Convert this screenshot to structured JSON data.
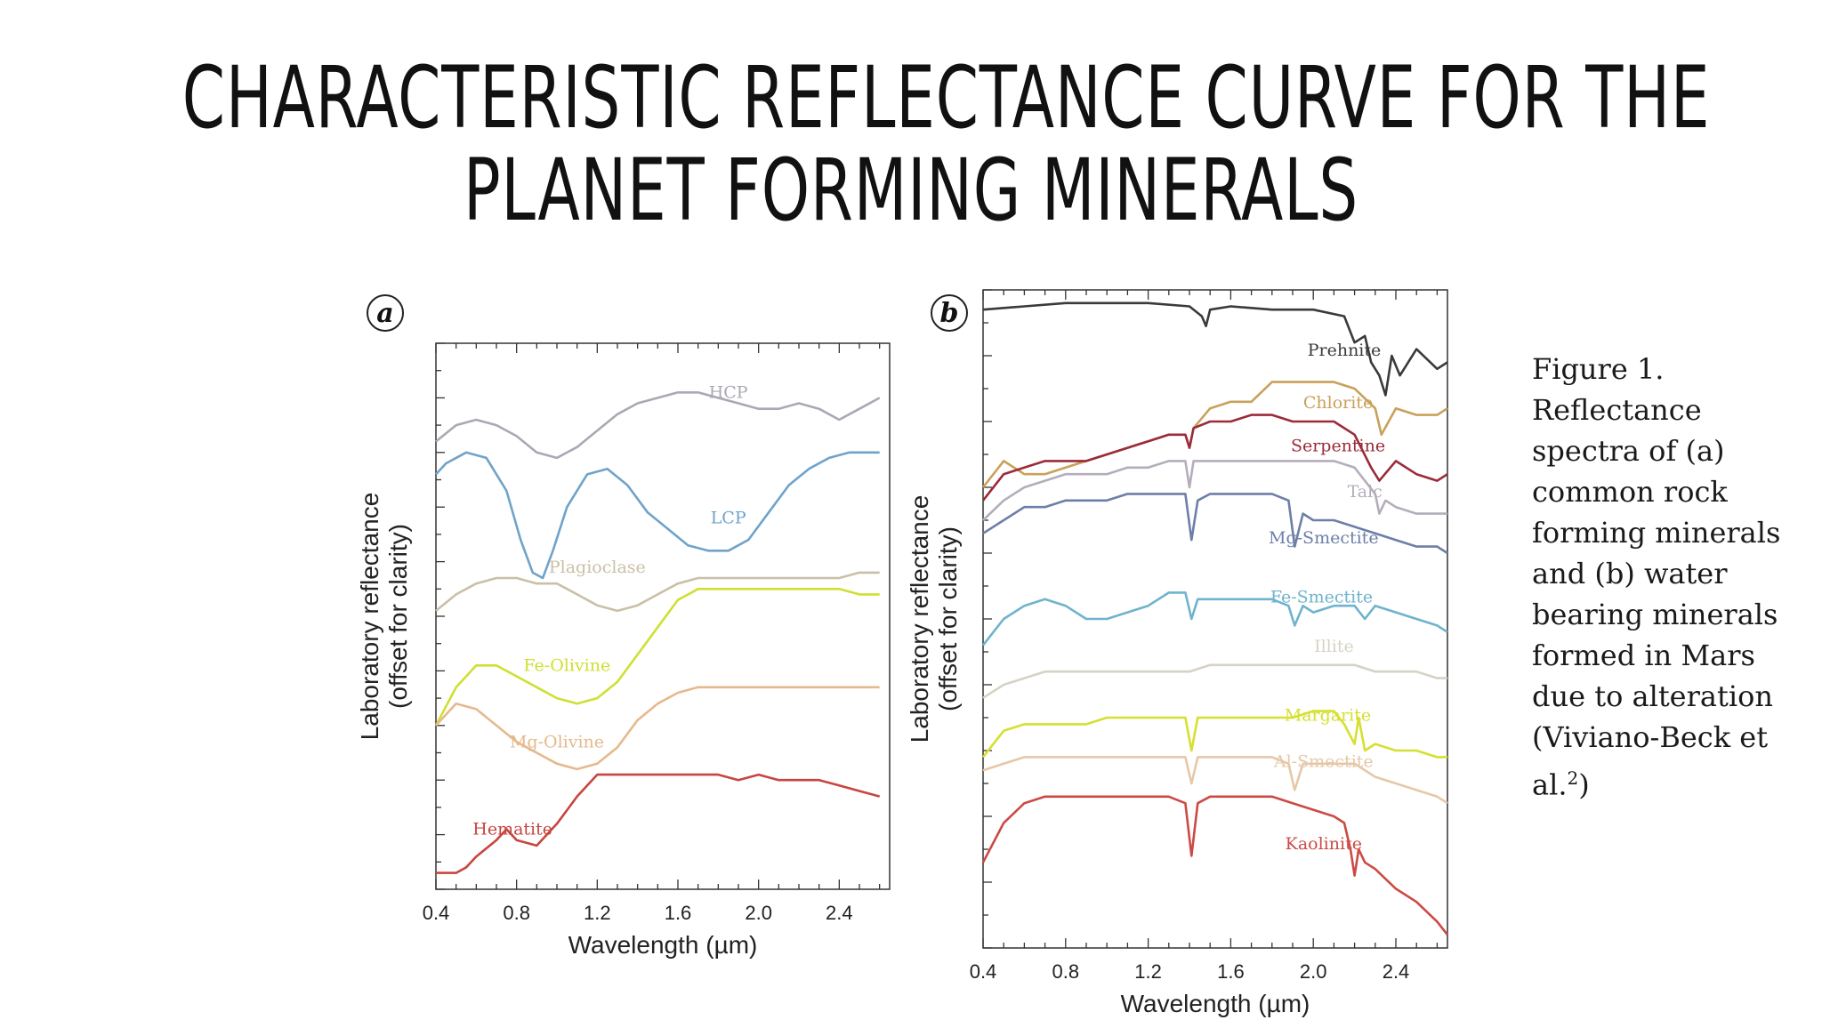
{
  "slide": {
    "title_line1": "CHARACTERISTIC REFLECTANCE CURVE FOR THE",
    "title_line2": "PLANET FORMING MINERALS",
    "caption_text": "Figure 1. Reflectance spectra of (a) common rock forming minerals and (b) water bearing minerals formed in Mars due to alteration (Viviano-Beck et al.",
    "caption_superscript": "2",
    "caption_end": ")"
  },
  "chart_data": [
    {
      "type": "line",
      "panel_label": "a",
      "xlabel": "Wavelength (µm)",
      "ylabel": "Laboratory reflectance",
      "ylabel_sub": "(offset for clarity)",
      "xlim": [
        0.4,
        2.65
      ],
      "xticks": [
        0.4,
        0.8,
        1.2,
        1.6,
        2.0,
        2.4
      ],
      "xtick_labels": [
        "0.4",
        "0.8",
        "1.2",
        "1.6",
        "2.0",
        "2.4"
      ],
      "y_tick_labels_shown": false,
      "ylim": [
        0,
        100
      ],
      "series": [
        {
          "name": "HCP",
          "color": "#a9a9b4",
          "label_at": [
            1.85,
            90
          ],
          "x": [
            0.4,
            0.5,
            0.6,
            0.7,
            0.8,
            0.9,
            1.0,
            1.1,
            1.2,
            1.3,
            1.4,
            1.5,
            1.6,
            1.7,
            1.8,
            1.9,
            2.0,
            2.1,
            2.2,
            2.3,
            2.4,
            2.5,
            2.6
          ],
          "y": [
            82,
            85,
            86,
            85,
            83,
            80,
            79,
            81,
            84,
            87,
            89,
            90,
            91,
            91,
            90,
            89,
            88,
            88,
            89,
            88,
            86,
            88,
            90
          ]
        },
        {
          "name": "LCP",
          "color": "#6fa3c9",
          "label_at": [
            1.85,
            67
          ],
          "x": [
            0.4,
            0.45,
            0.55,
            0.65,
            0.75,
            0.82,
            0.88,
            0.93,
            0.98,
            1.05,
            1.15,
            1.25,
            1.35,
            1.45,
            1.55,
            1.65,
            1.75,
            1.85,
            1.95,
            2.05,
            2.15,
            2.25,
            2.35,
            2.45,
            2.55,
            2.6
          ],
          "y": [
            76,
            78,
            80,
            79,
            73,
            64,
            58,
            57,
            62,
            70,
            76,
            77,
            74,
            69,
            66,
            63,
            62,
            62,
            64,
            69,
            74,
            77,
            79,
            80,
            80,
            80
          ]
        },
        {
          "name": "Plagioclase",
          "color": "#c9c0a6",
          "label_at": [
            1.2,
            58
          ],
          "x": [
            0.4,
            0.5,
            0.6,
            0.7,
            0.8,
            0.9,
            1.0,
            1.1,
            1.2,
            1.3,
            1.4,
            1.5,
            1.6,
            1.7,
            1.8,
            1.9,
            2.0,
            2.1,
            2.2,
            2.3,
            2.4,
            2.5,
            2.6
          ],
          "y": [
            51,
            54,
            56,
            57,
            57,
            56,
            56,
            54,
            52,
            51,
            52,
            54,
            56,
            57,
            57,
            57,
            57,
            57,
            57,
            57,
            57,
            58,
            58
          ]
        },
        {
          "name": "Fe-Olivine",
          "color": "#cfe032",
          "label_at": [
            1.05,
            40
          ],
          "x": [
            0.4,
            0.5,
            0.6,
            0.7,
            0.8,
            0.9,
            1.0,
            1.1,
            1.2,
            1.3,
            1.4,
            1.5,
            1.6,
            1.7,
            1.8,
            1.9,
            2.0,
            2.1,
            2.2,
            2.3,
            2.4,
            2.5,
            2.6
          ],
          "y": [
            30,
            37,
            41,
            41,
            39,
            37,
            35,
            34,
            35,
            38,
            43,
            48,
            53,
            55,
            55,
            55,
            55,
            55,
            55,
            55,
            55,
            54,
            54
          ]
        },
        {
          "name": "Mg-Olivine",
          "color": "#e6b98d",
          "label_at": [
            1.0,
            26
          ],
          "x": [
            0.4,
            0.5,
            0.6,
            0.7,
            0.8,
            0.9,
            1.0,
            1.1,
            1.2,
            1.3,
            1.4,
            1.5,
            1.6,
            1.7,
            1.8,
            1.9,
            2.0,
            2.1,
            2.2,
            2.3,
            2.4,
            2.5,
            2.6
          ],
          "y": [
            30,
            34,
            33,
            30,
            27,
            25,
            23,
            22,
            23,
            26,
            31,
            34,
            36,
            37,
            37,
            37,
            37,
            37,
            37,
            37,
            37,
            37,
            37
          ]
        },
        {
          "name": "Hematite",
          "color": "#c8453f",
          "label_at": [
            0.78,
            10
          ],
          "x": [
            0.4,
            0.5,
            0.55,
            0.6,
            0.7,
            0.75,
            0.8,
            0.9,
            1.0,
            1.1,
            1.2,
            1.3,
            1.4,
            1.5,
            1.6,
            1.7,
            1.8,
            1.9,
            2.0,
            2.1,
            2.2,
            2.3,
            2.4,
            2.5,
            2.6
          ],
          "y": [
            3,
            3,
            4,
            6,
            9,
            11,
            9,
            8,
            12,
            17,
            21,
            21,
            21,
            21,
            21,
            21,
            21,
            20,
            21,
            20,
            20,
            20,
            19,
            18,
            17
          ]
        }
      ]
    },
    {
      "type": "line",
      "panel_label": "b",
      "xlabel": "Wavelength (µm)",
      "ylabel": "Laboratory reflectance",
      "ylabel_sub": "(offset for clarity)",
      "xlim": [
        0.4,
        2.65
      ],
      "xticks": [
        0.4,
        0.8,
        1.2,
        1.6,
        2.0,
        2.4
      ],
      "xtick_labels": [
        "0.4",
        "0.8",
        "1.2",
        "1.6",
        "2.0",
        "2.4"
      ],
      "y_tick_labels_shown": false,
      "ylim": [
        0,
        100
      ],
      "series": [
        {
          "name": "Prehnite",
          "color": "#3a3a3a",
          "label_at": [
            2.15,
            90
          ],
          "x": [
            0.4,
            0.6,
            0.8,
            1.0,
            1.2,
            1.4,
            1.46,
            1.48,
            1.5,
            1.6,
            1.8,
            2.0,
            2.15,
            2.2,
            2.25,
            2.28,
            2.32,
            2.35,
            2.38,
            2.42,
            2.5,
            2.6,
            2.65
          ],
          "y": [
            97,
            97.5,
            98,
            98,
            98,
            97.5,
            96,
            94.5,
            97,
            97.5,
            97,
            97,
            96,
            92,
            93,
            89,
            87,
            84,
            90,
            87,
            91,
            88,
            89
          ]
        },
        {
          "name": "Chlorite",
          "color": "#c9a15a",
          "label_at": [
            2.12,
            82
          ],
          "x": [
            0.4,
            0.5,
            0.6,
            0.7,
            0.8,
            0.9,
            1.0,
            1.1,
            1.2,
            1.3,
            1.38,
            1.4,
            1.42,
            1.5,
            1.6,
            1.7,
            1.8,
            1.9,
            2.0,
            2.1,
            2.2,
            2.3,
            2.33,
            2.4,
            2.5,
            2.6,
            2.65
          ],
          "y": [
            70,
            74,
            72,
            72,
            73,
            74,
            75,
            76,
            77,
            78,
            78,
            76,
            79,
            82,
            83,
            83,
            86,
            86,
            86,
            86,
            85,
            82,
            78,
            82,
            81,
            81,
            82
          ]
        },
        {
          "name": "Serpentine",
          "color": "#9b2b3a",
          "label_at": [
            2.12,
            75.5
          ],
          "x": [
            0.4,
            0.5,
            0.6,
            0.7,
            0.8,
            0.9,
            1.0,
            1.1,
            1.2,
            1.3,
            1.38,
            1.4,
            1.42,
            1.5,
            1.6,
            1.7,
            1.8,
            1.9,
            2.0,
            2.1,
            2.2,
            2.28,
            2.32,
            2.4,
            2.5,
            2.6,
            2.65
          ],
          "y": [
            68,
            72,
            73,
            74,
            74,
            74,
            75,
            76,
            77,
            78,
            78,
            76,
            79,
            80,
            80,
            81,
            81,
            80,
            80,
            80,
            78,
            73,
            71,
            74,
            72,
            71,
            72
          ]
        },
        {
          "name": "Talc",
          "color": "#b4aebb",
          "label_at": [
            2.25,
            68.5
          ],
          "x": [
            0.4,
            0.5,
            0.6,
            0.7,
            0.8,
            0.9,
            1.0,
            1.1,
            1.2,
            1.3,
            1.38,
            1.4,
            1.42,
            1.5,
            1.6,
            1.7,
            1.8,
            1.9,
            2.0,
            2.1,
            2.2,
            2.3,
            2.32,
            2.35,
            2.4,
            2.5,
            2.6,
            2.65
          ],
          "y": [
            65,
            68,
            70,
            71,
            72,
            72,
            72,
            73,
            73,
            74,
            74,
            70,
            74,
            74,
            74,
            74,
            74,
            74,
            74,
            74,
            73,
            69,
            66,
            68,
            67,
            66,
            66,
            66
          ]
        },
        {
          "name": "Mg-Smectite",
          "color": "#6d7fa8",
          "label_at": [
            2.05,
            61.5
          ],
          "x": [
            0.4,
            0.5,
            0.6,
            0.7,
            0.8,
            0.9,
            1.0,
            1.1,
            1.2,
            1.3,
            1.38,
            1.41,
            1.44,
            1.5,
            1.6,
            1.7,
            1.8,
            1.88,
            1.91,
            1.95,
            2.0,
            2.1,
            2.2,
            2.3,
            2.4,
            2.5,
            2.6,
            2.65
          ],
          "y": [
            63,
            65,
            67,
            67,
            68,
            68,
            68,
            69,
            69,
            69,
            69,
            62,
            68,
            69,
            69,
            69,
            69,
            68,
            61,
            66,
            65,
            65,
            64,
            63,
            62,
            61,
            61,
            60
          ]
        },
        {
          "name": "Fe-Smectite",
          "color": "#6fb3cc",
          "label_at": [
            2.04,
            52.5
          ],
          "x": [
            0.4,
            0.45,
            0.5,
            0.6,
            0.7,
            0.8,
            0.9,
            1.0,
            1.1,
            1.2,
            1.3,
            1.38,
            1.41,
            1.44,
            1.5,
            1.6,
            1.7,
            1.8,
            1.88,
            1.91,
            1.95,
            2.0,
            2.1,
            2.2,
            2.25,
            2.3,
            2.4,
            2.5,
            2.6,
            2.65
          ],
          "y": [
            46,
            48,
            50,
            52,
            53,
            52,
            50,
            50,
            51,
            52,
            54,
            54,
            50,
            53,
            53,
            53,
            53,
            53,
            52,
            49,
            52,
            51,
            52,
            52,
            50,
            52,
            51,
            50,
            49,
            48
          ]
        },
        {
          "name": "Illite",
          "color": "#d6d2c5",
          "label_at": [
            2.1,
            45
          ],
          "x": [
            0.4,
            0.5,
            0.6,
            0.7,
            0.8,
            0.9,
            1.0,
            1.1,
            1.2,
            1.3,
            1.4,
            1.5,
            1.6,
            1.7,
            1.8,
            1.9,
            2.0,
            2.1,
            2.2,
            2.3,
            2.4,
            2.5,
            2.6,
            2.65
          ],
          "y": [
            38,
            40,
            41,
            42,
            42,
            42,
            42,
            42,
            42,
            42,
            42,
            43,
            43,
            43,
            43,
            43,
            43,
            43,
            43,
            42,
            42,
            42,
            41,
            41
          ]
        },
        {
          "name": "Margarite",
          "color": "#d6e030",
          "label_at": [
            2.07,
            34.5
          ],
          "x": [
            0.4,
            0.45,
            0.5,
            0.6,
            0.7,
            0.8,
            0.9,
            1.0,
            1.1,
            1.2,
            1.3,
            1.38,
            1.41,
            1.44,
            1.5,
            1.6,
            1.7,
            1.8,
            1.9,
            2.0,
            2.1,
            2.15,
            2.2,
            2.22,
            2.25,
            2.3,
            2.4,
            2.5,
            2.6,
            2.65
          ],
          "y": [
            29,
            31,
            33,
            34,
            34,
            34,
            34,
            35,
            35,
            35,
            35,
            35,
            30,
            35,
            35,
            35,
            35,
            35,
            35,
            36,
            36,
            34,
            31,
            35,
            30,
            31,
            30,
            30,
            29,
            29
          ]
        },
        {
          "name": "Al-Smectite",
          "color": "#e6c8a8",
          "label_at": [
            2.05,
            27.5
          ],
          "x": [
            0.4,
            0.5,
            0.6,
            0.7,
            0.8,
            0.9,
            1.0,
            1.1,
            1.2,
            1.3,
            1.38,
            1.41,
            1.44,
            1.5,
            1.6,
            1.7,
            1.8,
            1.88,
            1.91,
            1.95,
            2.0,
            2.1,
            2.2,
            2.3,
            2.4,
            2.5,
            2.6,
            2.65
          ],
          "y": [
            27,
            28,
            29,
            29,
            29,
            29,
            29,
            29,
            29,
            29,
            29,
            25,
            29,
            29,
            29,
            29,
            29,
            28,
            24,
            28,
            28,
            28,
            28,
            26,
            25,
            24,
            23,
            22
          ]
        },
        {
          "name": "Kaolinite",
          "color": "#cc4a45",
          "label_at": [
            2.05,
            15
          ],
          "x": [
            0.4,
            0.45,
            0.5,
            0.6,
            0.7,
            0.8,
            0.9,
            1.0,
            1.1,
            1.2,
            1.3,
            1.38,
            1.41,
            1.44,
            1.5,
            1.6,
            1.7,
            1.8,
            1.9,
            2.0,
            2.1,
            2.15,
            2.18,
            2.2,
            2.22,
            2.25,
            2.3,
            2.4,
            2.5,
            2.6,
            2.65
          ],
          "y": [
            13,
            16,
            19,
            22,
            23,
            23,
            23,
            23,
            23,
            23,
            23,
            22,
            14,
            22,
            23,
            23,
            23,
            23,
            22,
            21,
            20,
            19,
            15,
            11,
            15,
            13,
            12,
            9,
            7,
            4,
            2
          ]
        }
      ]
    }
  ]
}
